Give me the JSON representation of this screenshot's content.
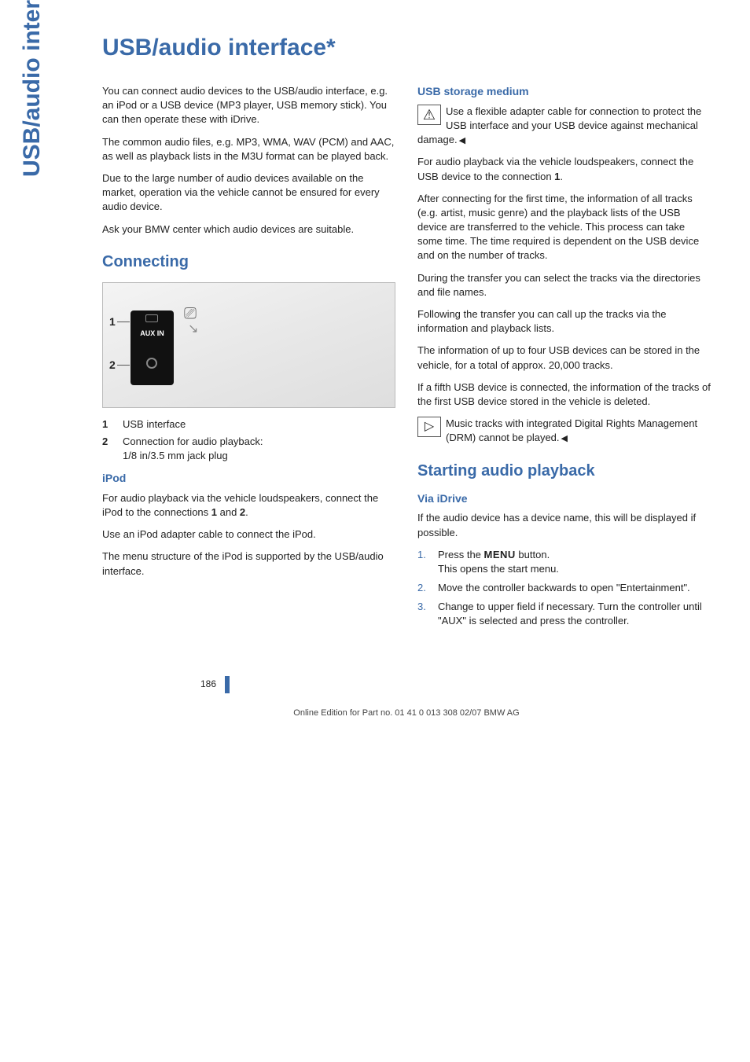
{
  "colors": {
    "accent": "#3a6aa8",
    "body_text": "#222222",
    "border": "#bbbbbb"
  },
  "side_tab": "USB/audio interface",
  "page_title": "USB/audio interface*",
  "intro": {
    "p1": "You can connect audio devices to the USB/audio interface, e.g. an iPod or a USB device (MP3 player, USB memory stick). You can then operate these with iDrive.",
    "p2": "The common audio files, e.g. MP3, WMA, WAV (PCM) and AAC, as well as playback lists in the M3U format can be played back.",
    "p3": "Due to the large number of audio devices available on the market, operation via the vehicle cannot be ensured for every audio device.",
    "p4": "Ask your BMW center which audio devices are suitable."
  },
  "connecting": {
    "heading": "Connecting",
    "diagram": {
      "callouts": [
        "1",
        "2"
      ],
      "aux_label": "AUX IN"
    },
    "legend": [
      {
        "num": "1",
        "text": "USB interface"
      },
      {
        "num": "2",
        "text": "Connection for audio playback:",
        "text2": "1/8 in/3.5 mm jack plug"
      }
    ]
  },
  "ipod": {
    "heading": "iPod",
    "p1_a": "For audio playback via the vehicle loudspeakers, connect the iPod to the connections ",
    "p1_b": "1",
    "p1_c": " and ",
    "p1_d": "2",
    "p1_e": ".",
    "p2": "Use an iPod adapter cable to connect the iPod.",
    "p3": "The menu structure of the iPod is supported by the USB/audio interface."
  },
  "usb_storage": {
    "heading": "USB storage medium",
    "warn": "Use a flexible adapter cable for connection to protect the USB interface and your USB device against mechanical damage.",
    "p2_a": "For audio playback via the vehicle loudspeakers, connect the USB device to the connection ",
    "p2_b": "1",
    "p2_c": ".",
    "p3": "After connecting for the first time, the information of all tracks (e.g. artist, music genre) and the playback lists of the USB device are transferred to the vehicle. This process can take some time. The time required is dependent on the USB device and on the number of tracks.",
    "p4": "During the transfer you can select the tracks via the directories and file names.",
    "p5": "Following the transfer you can call up the tracks via the information and playback lists.",
    "p6": "The information of up to four USB devices can be stored in the vehicle, for a total of approx. 20,000 tracks.",
    "p7": "If a fifth USB device is connected, the information of the tracks of the first USB device stored in the vehicle is deleted.",
    "note": "Music tracks with integrated Digital Rights Management (DRM) cannot be played."
  },
  "starting": {
    "heading": "Starting audio playback",
    "sub": "Via iDrive",
    "intro": "If the audio device has a device name, this will be displayed if possible.",
    "steps": [
      {
        "num": "1.",
        "text_a": "Press the ",
        "text_b": "MENU",
        "text_c": " button.",
        "text2": "This opens the start menu."
      },
      {
        "num": "2.",
        "text_a": "Move the controller backwards to open \"Entertainment\"."
      },
      {
        "num": "3.",
        "text_a": "Change to upper field if necessary. Turn the controller until \"AUX\" is selected and press the controller."
      }
    ]
  },
  "page_number": "186",
  "footer": "Online Edition for Part no. 01 41 0 013 308 02/07 BMW AG"
}
